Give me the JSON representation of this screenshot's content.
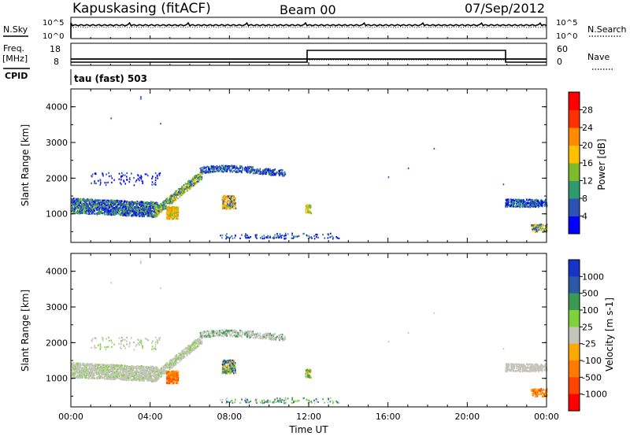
{
  "header": {
    "station": "Kapuskasing (fitACF)",
    "beam": "Beam 00",
    "date": "07/Sep/2012"
  },
  "top_panels": {
    "nsky_label": "N.Sky",
    "nsky_ticks": [
      "10^5",
      "10^0"
    ],
    "nsearch_label": "N.Search",
    "nsearch_ticks": [
      "10^5",
      "10^0"
    ],
    "freq_label_1": "Freq.",
    "freq_label_2": "[MHz]",
    "freq_ticks": [
      "18",
      "8"
    ],
    "nave_label": "Nave",
    "nave_ticks": [
      "60",
      "0"
    ],
    "cpid_label": "CPID",
    "cpid_value": "tau (fast) 503"
  },
  "chart_data": [
    {
      "type": "heatmap",
      "name": "power",
      "ylabel": "Slant Range [km]",
      "xlim": [
        0,
        24
      ],
      "ylim": [
        200,
        4500
      ],
      "yticks": [
        "1000",
        "2000",
        "3000",
        "4000"
      ],
      "colorbar": {
        "label": "Power [dB]",
        "ticks": [
          "4",
          "8",
          "12",
          "16",
          "20",
          "24",
          "28"
        ],
        "colors": [
          "#0000ff",
          "#2b52b0",
          "#2f9a6e",
          "#7dbb2c",
          "#ffc000",
          "#ff8c00",
          "#ff3000",
          "#ff0000"
        ]
      }
    },
    {
      "type": "heatmap",
      "name": "velocity",
      "ylabel": "Slant Range [km]",
      "xlim": [
        0,
        24
      ],
      "ylim": [
        200,
        4500
      ],
      "yticks": [
        "1000",
        "2000",
        "3000",
        "4000"
      ],
      "xticks": [
        "00:00",
        "04:00",
        "08:00",
        "12:00",
        "16:00",
        "20:00",
        "00:00"
      ],
      "xlabel": "Time UT",
      "colorbar": {
        "label": "Velocity [m s-1]",
        "ticks": [
          "1000",
          "500",
          "100",
          "25",
          "-25",
          "-100",
          "-500",
          "-1000"
        ],
        "colors": [
          "#1533c8",
          "#2b58a8",
          "#3a9a52",
          "#7ed23a",
          "#c4c4bc",
          "#ffaa00",
          "#ff7a00",
          "#ff4400",
          "#ff0000"
        ]
      }
    }
  ]
}
